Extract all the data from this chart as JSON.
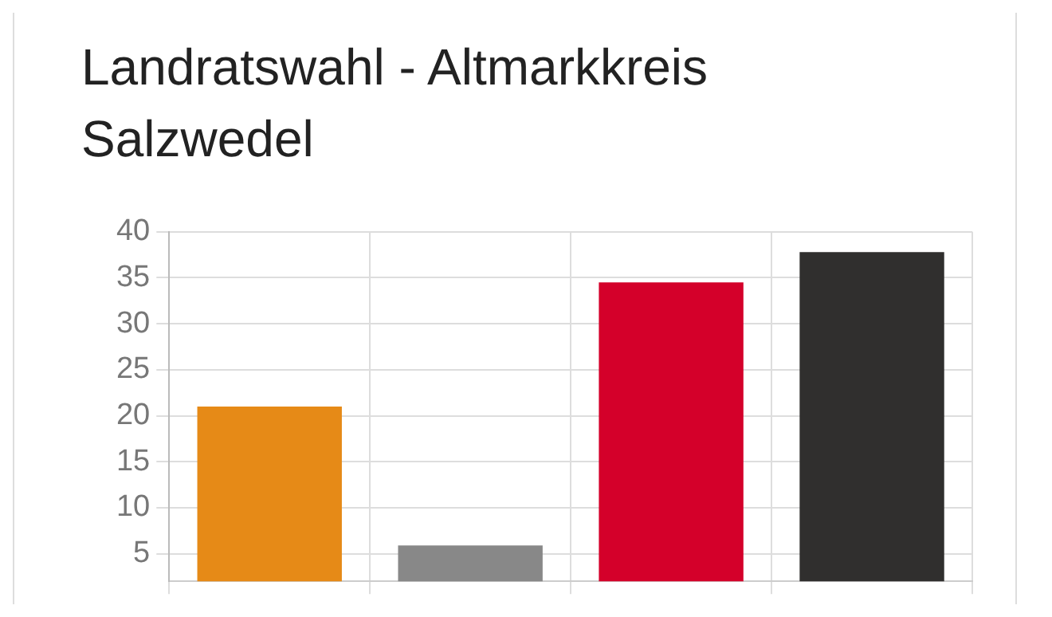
{
  "chart_data": {
    "type": "bar",
    "title": "Landratswahl - Altmarkkreis Salzwedel",
    "categories": [
      null,
      null,
      null,
      null
    ],
    "values": [
      21.0,
      5.9,
      34.5,
      37.8
    ],
    "colors": [
      "#e68a17",
      "#888888",
      "#d4002a",
      "#302f2e"
    ],
    "ylim": [
      2,
      40
    ],
    "yticks": [
      5,
      10,
      15,
      20,
      25,
      30,
      35,
      40
    ],
    "grid": true
  }
}
